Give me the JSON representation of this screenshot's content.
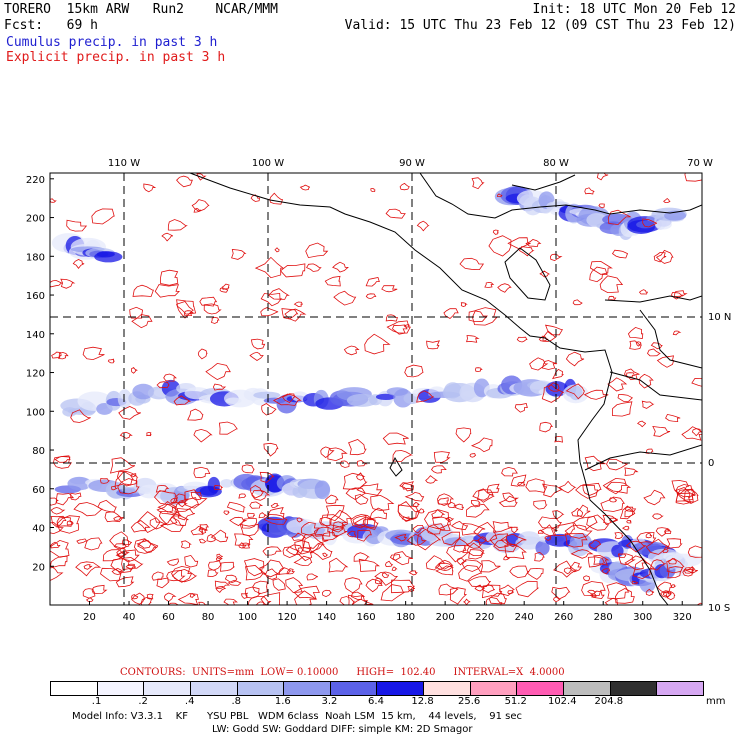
{
  "header": {
    "model": "TORERO  15km ARW   Run2    NCAR/MMM",
    "init": "Init: 18 UTC Mon 20 Feb 12",
    "fcst": "Fcst:   69 h",
    "valid": "Valid: 15 UTC Thu 23 Feb 12 (09 CST Thu 23 Feb 12)",
    "cumulus": "Cumulus precip. in past 3 h",
    "explicit": "Explicit precip. in past 3 h"
  },
  "map": {
    "top_lon_labels": [
      "110 W",
      "100 W",
      "90 W",
      "80 W",
      "70 W"
    ],
    "right_lat_labels": [
      "10 N",
      "0",
      "10 S"
    ],
    "y_ticks": [
      "220",
      "200",
      "180",
      "160",
      "140",
      "120",
      "100",
      "80",
      "60",
      "40",
      "20"
    ],
    "x_ticks": [
      "20",
      "40",
      "60",
      "80",
      "100",
      "120",
      "140",
      "160",
      "180",
      "200",
      "220",
      "240",
      "260",
      "280",
      "300",
      "320"
    ],
    "grid_cols": 330,
    "grid_rows": 223,
    "colors": {
      "coast": "#000000",
      "contour": "#e01010",
      "graticule": "#000000"
    }
  },
  "contour_info": {
    "contours": "CONTOURS:  UNITS=mm  LOW= 0.10000",
    "high": "HIGH=  102.40",
    "interval": "INTERVAL=X  4.0000"
  },
  "legend": {
    "colors": [
      "#ffffff",
      "#f4f4ff",
      "#e6e9fb",
      "#d2d8f7",
      "#b7c2f2",
      "#8e98ee",
      "#5c62e8",
      "#1717e6",
      "#ffe0e0",
      "#ff9fbf",
      "#ff5cb3",
      "#bdbdbd",
      "#303030",
      "#d6a8f2"
    ],
    "labels": [
      ".1",
      ".2",
      ".4",
      ".8",
      "1.6",
      "3.2",
      "6.4",
      "12.8",
      "25.6",
      "51.2",
      "102.4",
      "204.8"
    ],
    "unit": "mm"
  },
  "footer": {
    "line1": "Model Info: V3.3.1    KF      YSU PBL   WDM 6class  Noah LSM  15 km,    44 levels,    91 sec",
    "line2": "LW: Godd SW: Goddard DIFF: simple KM: 2D Smagor"
  }
}
